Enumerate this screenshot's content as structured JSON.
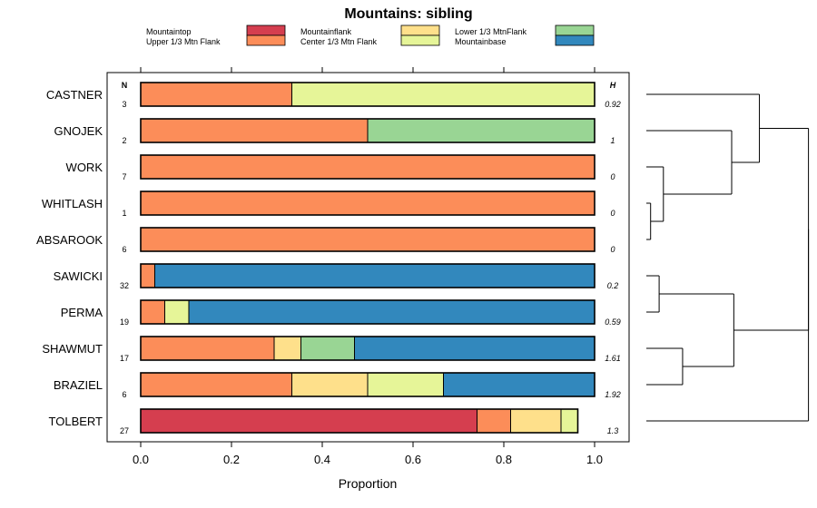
{
  "chart_data": {
    "type": "bar",
    "orientation": "horizontal",
    "stacked": true,
    "title": "Mountains: sibling",
    "xlabel": "Proportion",
    "ylabel": "",
    "xlim": [
      0,
      1
    ],
    "xticks": [
      "0.0",
      "0.2",
      "0.4",
      "0.6",
      "0.8",
      "1.0"
    ],
    "n_header": "N",
    "h_header": "H",
    "legend": [
      {
        "name": "Mountaintop",
        "color": "#d53e4f"
      },
      {
        "name": "Upper 1/3 Mtn Flank",
        "color": "#fc8d59"
      },
      {
        "name": "Mountainflank",
        "color": "#fee08b"
      },
      {
        "name": "Center 1/3 Mtn Flank",
        "color": "#e6f598"
      },
      {
        "name": "Lower 1/3 MtnFlank",
        "color": "#99d594"
      },
      {
        "name": "Mountainbase",
        "color": "#3288bd"
      }
    ],
    "categories": [
      "CASTNER",
      "GNOJEK",
      "WORK",
      "WHITLASH",
      "ABSAROOK",
      "SAWICKI",
      "PERMA",
      "SHAWMUT",
      "BRAZIEL",
      "TOLBERT"
    ],
    "n": [
      "3",
      "2",
      "7",
      "1",
      "6",
      "32",
      "19",
      "17",
      "6",
      "27"
    ],
    "h": [
      "0.92",
      "1",
      "0",
      "0",
      "0",
      "0.2",
      "0.59",
      "1.61",
      "1.92",
      "1.3"
    ],
    "series": [
      {
        "name": "Mountaintop",
        "values": [
          0,
          0,
          0,
          0,
          0,
          0,
          0,
          0,
          0,
          0.741
        ]
      },
      {
        "name": "Upper 1/3 Mtn Flank",
        "values": [
          0.333,
          0.5,
          1.0,
          1.0,
          1.0,
          0.031,
          0.053,
          0.294,
          0.333,
          0.074
        ]
      },
      {
        "name": "Mountainflank",
        "values": [
          0,
          0,
          0,
          0,
          0,
          0,
          0,
          0.059,
          0.167,
          0.111
        ]
      },
      {
        "name": "Center 1/3 Mtn Flank",
        "values": [
          0.667,
          0,
          0,
          0,
          0,
          0,
          0.053,
          0,
          0.167,
          0.037
        ]
      },
      {
        "name": "Lower 1/3 MtnFlank",
        "values": [
          0,
          0.5,
          0,
          0,
          0,
          0,
          0,
          0.118,
          0,
          0
        ]
      },
      {
        "name": "Mountainbase",
        "values": [
          0,
          0,
          0,
          0,
          0,
          0.969,
          0.894,
          0.529,
          0.333,
          0
        ]
      }
    ],
    "dendrogram": {
      "type": "hierarchical-clustering",
      "leaves": [
        "CASTNER",
        "GNOJEK",
        "WORK",
        "WHITLASH",
        "ABSAROOK",
        "SAWICKI",
        "PERMA",
        "SHAWMUT",
        "BRAZIEL",
        "TOLBERT"
      ],
      "merges": [
        {
          "a": "WHITLASH",
          "b": "ABSAROOK",
          "height": 0.02
        },
        {
          "a": "WORK",
          "b": "m1",
          "height": 0.08
        },
        {
          "a": "SAWICKI",
          "b": "PERMA",
          "height": 0.06
        },
        {
          "a": "SHAWMUT",
          "b": "BRAZIEL",
          "height": 0.17
        },
        {
          "a": "m3",
          "b": "m4",
          "height": 0.41
        },
        {
          "a": "GNOJEK",
          "b": "m2",
          "height": 0.4
        },
        {
          "a": "CASTNER",
          "b": "m6",
          "height": 0.53
        },
        {
          "a": "m7",
          "b": "m5",
          "height": 0.76
        },
        {
          "a": "m8",
          "b": "TOLBERT",
          "height": 0.76
        }
      ]
    }
  }
}
